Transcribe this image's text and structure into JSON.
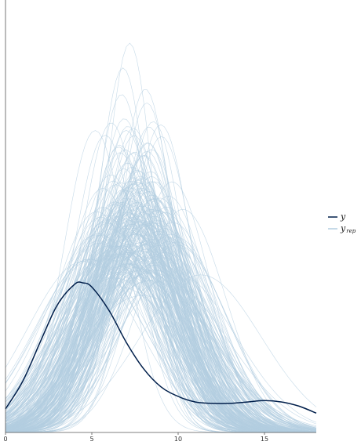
{
  "chart_data": {
    "type": "line",
    "title": "",
    "xlabel": "",
    "ylabel": "",
    "xlim": [
      0,
      18
    ],
    "ylim": [
      0,
      0.31
    ],
    "x_ticks": [
      0,
      5,
      10,
      15
    ],
    "x_tick_labels": [
      "0",
      "5",
      "10",
      "15"
    ],
    "grid": false,
    "legend_position": "right",
    "n_replicates": 250,
    "series": [
      {
        "name": "y",
        "name_sub": "",
        "color": "#011f4b",
        "x": [
          0,
          1,
          2,
          3,
          4,
          4.5,
          5,
          6,
          7,
          8,
          9,
          10,
          11,
          12,
          13,
          14,
          15,
          16,
          17,
          18
        ],
        "values": [
          0.017,
          0.037,
          0.065,
          0.092,
          0.107,
          0.108,
          0.105,
          0.088,
          0.065,
          0.046,
          0.033,
          0.026,
          0.022,
          0.021,
          0.021,
          0.022,
          0.023,
          0.022,
          0.019,
          0.014
        ]
      },
      {
        "name": "y",
        "name_sub": "rep",
        "color": "#b3cde0",
        "description_values": "replicated densities, mostly unimodal, centred around x = 6 to 9, peaks ~0.12 to 0.30"
      }
    ]
  }
}
